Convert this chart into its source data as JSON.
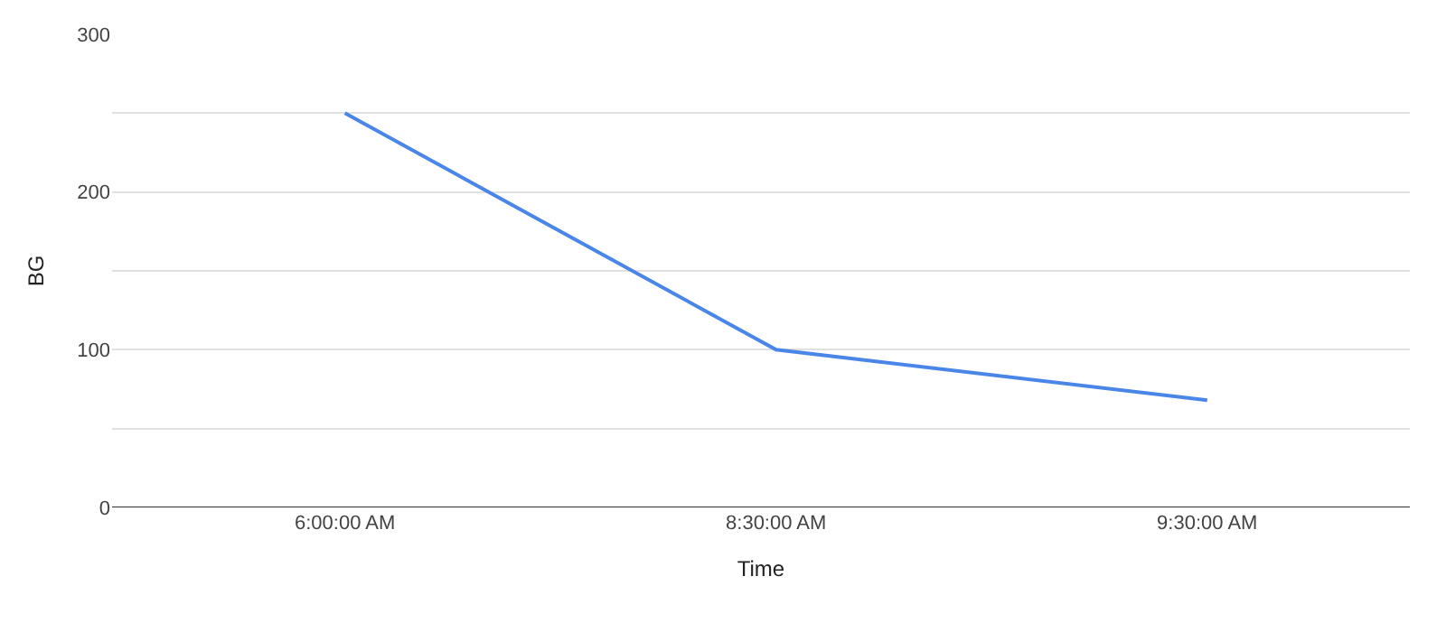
{
  "chart_data": {
    "type": "line",
    "xlabel": "Time",
    "ylabel": "BG",
    "categories": [
      "6:00:00 AM",
      "8:30:00 AM",
      "9:30:00 AM"
    ],
    "series": [
      {
        "color": "#4a86e8",
        "values": [
          250,
          100,
          68
        ]
      }
    ],
    "ylim": [
      0,
      300
    ],
    "yticks": [
      0,
      {
        "value": 50,
        "label": null
      },
      100,
      {
        "value": 150,
        "label": null
      },
      200,
      {
        "value": 250,
        "label": null
      },
      300
    ],
    "grid": "y",
    "marker": "none",
    "line_style": "solid"
  }
}
